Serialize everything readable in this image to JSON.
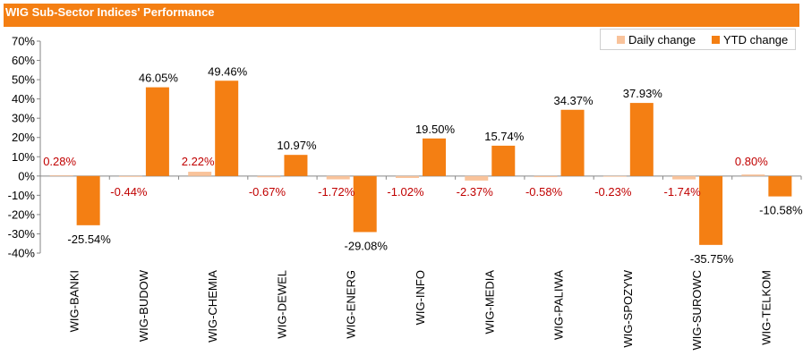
{
  "chart_data": {
    "type": "bar",
    "title": "WIG Sub-Sector Indices' Performance",
    "categories": [
      "WIG-BANKI",
      "WIG-BUDOW",
      "WIG-CHEMIA",
      "WIG-DEWEL",
      "WIG-ENERG",
      "WIG-INFO",
      "WIG-MEDIA",
      "WIG-PALIWA",
      "WIG-SPOZYW",
      "WIG-SUROWC",
      "WIG-TELKOM"
    ],
    "series": [
      {
        "name": "Daily change",
        "color": "#f9c39b",
        "label_color": "#c00000",
        "values": [
          0.28,
          -0.44,
          2.22,
          -0.67,
          -1.72,
          -1.02,
          -2.37,
          -0.58,
          -0.23,
          -1.74,
          0.8
        ],
        "labels": [
          "0.28%",
          "-0.44%",
          "2.22%",
          "-0.67%",
          "-1.72%",
          "-1.02%",
          "-2.37%",
          "-0.58%",
          "-0.23%",
          "-1.74%",
          "0.80%"
        ]
      },
      {
        "name": "YTD change",
        "color": "#f47f13",
        "label_color": "#000000",
        "values": [
          -25.54,
          46.05,
          49.46,
          10.97,
          -29.08,
          19.5,
          15.74,
          34.37,
          37.93,
          -35.75,
          -10.58
        ],
        "labels": [
          "-25.54%",
          "46.05%",
          "49.46%",
          "10.97%",
          "-29.08%",
          "19.50%",
          "15.74%",
          "34.37%",
          "37.93%",
          "-35.75%",
          "-10.58%"
        ]
      }
    ],
    "ylim": [
      -40,
      70
    ],
    "yticks": [
      70,
      60,
      50,
      40,
      30,
      20,
      10,
      0,
      -10,
      -20,
      -30,
      -40
    ],
    "ytick_labels": [
      "70%",
      "60%",
      "50%",
      "40%",
      "30%",
      "20%",
      "10%",
      "0%",
      "-10%",
      "-20%",
      "-30%",
      "-40%"
    ],
    "legend_position": "top-right",
    "grid": false
  }
}
